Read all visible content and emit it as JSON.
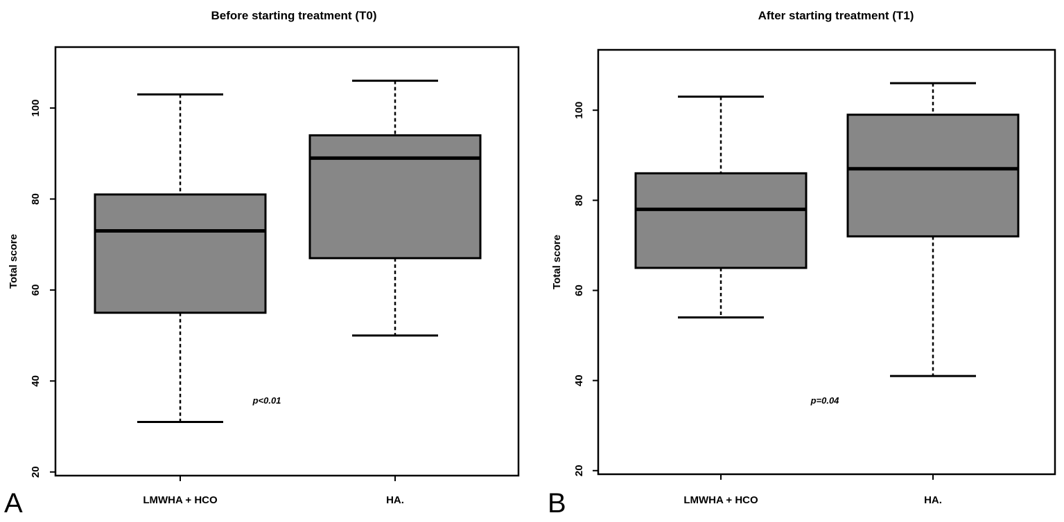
{
  "chart_data": [
    {
      "type": "boxplot",
      "panel_label": "A",
      "title": "Before starting treatment (T0)",
      "xlabel": "",
      "ylabel": "Total score",
      "ylim": [
        19.2,
        113.4
      ],
      "yticks": [
        20,
        40,
        60,
        80,
        100
      ],
      "grid": false,
      "categories": [
        "LMWHA + HCO",
        "HA."
      ],
      "boxes": [
        {
          "name": "LMWHA + HCO",
          "whisker_low": 31,
          "q1": 55,
          "median": 73,
          "q3": 81,
          "whisker_high": 103
        },
        {
          "name": "HA.",
          "whisker_low": 50,
          "q1": 67,
          "median": 89,
          "q3": 94,
          "whisker_high": 106
        }
      ],
      "annotation": {
        "text": "p<0.01",
        "x_between": 1.4,
        "y": 35.8
      }
    },
    {
      "type": "boxplot",
      "panel_label": "B",
      "title": "After starting treatment (T1)",
      "xlabel": "",
      "ylabel": "Total score",
      "ylim": [
        19.2,
        113.4
      ],
      "yticks": [
        20,
        40,
        60,
        80,
        100
      ],
      "grid": false,
      "categories": [
        "LMWHA + HCO",
        "HA."
      ],
      "boxes": [
        {
          "name": "LMWHA + HCO",
          "whisker_low": 54,
          "q1": 65,
          "median": 78,
          "q3": 86,
          "whisker_high": 103
        },
        {
          "name": "HA.",
          "whisker_low": 41,
          "q1": 72,
          "median": 87,
          "q3": 99,
          "whisker_high": 106
        }
      ],
      "annotation": {
        "text": "p=0.04",
        "x_between": 1.5,
        "y": 35.8
      }
    }
  ],
  "colors": {
    "box_fill": "#878787",
    "line": "#000000"
  }
}
